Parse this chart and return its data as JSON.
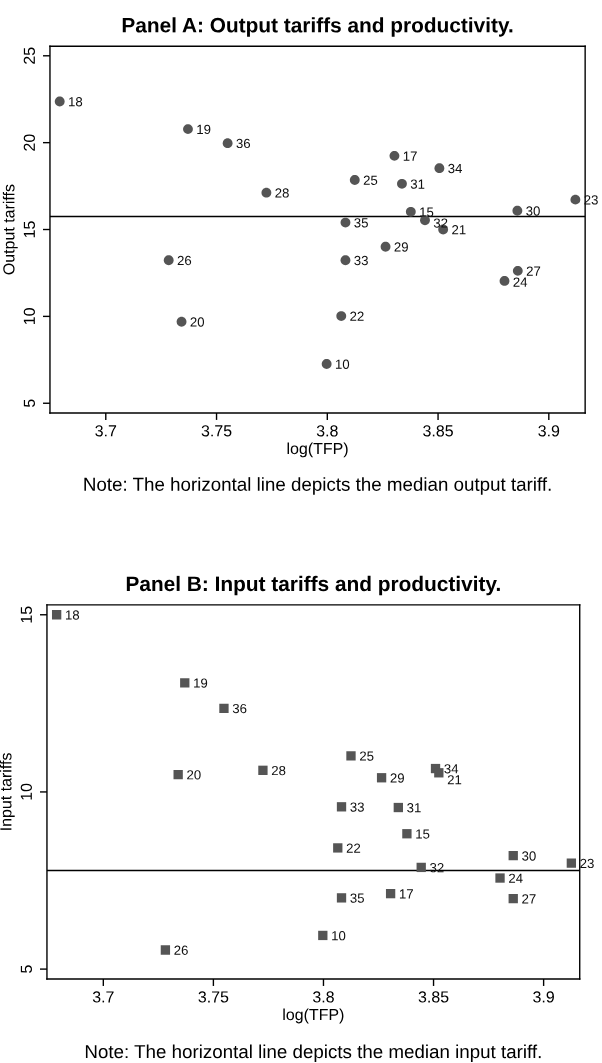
{
  "chart_data": [
    {
      "type": "scatter",
      "title": "Panel A: Output tariffs and productivity.",
      "xlabel": "log(TFP)",
      "ylabel": "Output tariffs",
      "marker": "circle",
      "grid": false,
      "xlim": [
        3.6748,
        3.9164
      ],
      "ylim": [
        4.44,
        25.55
      ],
      "xticks": [
        3.7,
        3.75,
        3.8,
        3.85,
        3.9
      ],
      "yticks": [
        5,
        10,
        15,
        20,
        25
      ],
      "series": [
        {
          "color": "#555555",
          "x": [
            3.6792,
            3.7371,
            3.755,
            3.8303,
            3.8506,
            3.8124,
            3.8337,
            3.7725,
            3.912,
            3.8377,
            3.8858,
            3.8441,
            3.8082,
            3.8523,
            3.8263,
            3.7284,
            3.8082,
            3.886,
            3.88,
            3.8063,
            3.7342,
            3.7997
          ],
          "values": [
            22.37,
            20.78,
            19.97,
            19.24,
            18.53,
            17.85,
            17.63,
            17.12,
            16.72,
            16.02,
            16.08,
            15.53,
            15.4,
            15.0,
            14.01,
            13.23,
            13.23,
            12.62,
            12.04,
            10.02,
            9.69,
            7.26
          ]
        }
      ],
      "ref_lines": [
        {
          "axis": "y",
          "value": 15.75,
          "color": "#000000",
          "line_style": "solid"
        }
      ],
      "annotations": [
        {
          "text": "18",
          "x": 3.6792,
          "y": 22.37
        },
        {
          "text": "19",
          "x": 3.7371,
          "y": 20.78
        },
        {
          "text": "36",
          "x": 3.755,
          "y": 19.97
        },
        {
          "text": "17",
          "x": 3.8303,
          "y": 19.24
        },
        {
          "text": "34",
          "x": 3.8506,
          "y": 18.53
        },
        {
          "text": "25",
          "x": 3.8124,
          "y": 17.85
        },
        {
          "text": "31",
          "x": 3.8337,
          "y": 17.63
        },
        {
          "text": "28",
          "x": 3.7725,
          "y": 17.12
        },
        {
          "text": "23",
          "x": 3.912,
          "y": 16.72
        },
        {
          "text": "15",
          "x": 3.8377,
          "y": 16.02
        },
        {
          "text": "30",
          "x": 3.8858,
          "y": 16.08
        },
        {
          "text": "32",
          "x": 3.8441,
          "y": 15.53
        },
        {
          "text": "35",
          "x": 3.8082,
          "y": 15.4
        },
        {
          "text": "21",
          "x": 3.8523,
          "y": 15.0
        },
        {
          "text": "29",
          "x": 3.8263,
          "y": 14.01
        },
        {
          "text": "26",
          "x": 3.7284,
          "y": 13.23
        },
        {
          "text": "33",
          "x": 3.8082,
          "y": 13.23
        },
        {
          "text": "27",
          "x": 3.886,
          "y": 12.62
        },
        {
          "text": "24",
          "x": 3.88,
          "y": 12.04
        },
        {
          "text": "22",
          "x": 3.8063,
          "y": 10.02
        },
        {
          "text": "20",
          "x": 3.7342,
          "y": 9.69
        },
        {
          "text": "10",
          "x": 3.7997,
          "y": 7.26
        },
        "Note: The horizontal line depicts the median output tariff."
      ]
    },
    {
      "type": "scatter",
      "title": "Panel B: Input tariffs and productivity.",
      "xlabel": "log(TFP)",
      "ylabel": "Input tariffs",
      "marker": "square",
      "grid": false,
      "xlim": [
        3.6744,
        3.9164
      ],
      "ylim": [
        4.72,
        15.28
      ],
      "xticks": [
        3.7,
        3.75,
        3.8,
        3.85,
        3.9
      ],
      "yticks": [
        5,
        10,
        15
      ],
      "series": [
        {
          "color": "#555555",
          "x": [
            3.6788,
            3.737,
            3.7548,
            3.8125,
            3.8509,
            3.7725,
            3.8524,
            3.734,
            3.8264,
            3.8082,
            3.834,
            3.8379,
            3.8065,
            3.8862,
            3.9126,
            3.8444,
            3.8802,
            3.8305,
            3.8082,
            3.8862,
            3.7997,
            3.7282
          ],
          "values": [
            15.0,
            13.08,
            12.36,
            11.02,
            10.66,
            10.61,
            10.54,
            10.49,
            10.4,
            9.58,
            9.56,
            8.82,
            8.42,
            8.2,
            7.99,
            7.87,
            7.57,
            7.13,
            7.01,
            6.99,
            5.95,
            5.54
          ]
        }
      ],
      "ref_lines": [
        {
          "axis": "y",
          "value": 7.78,
          "color": "#000000",
          "line_style": "solid"
        }
      ],
      "annotations": [
        {
          "text": "18",
          "x": 3.6788,
          "y": 15.0
        },
        {
          "text": "19",
          "x": 3.737,
          "y": 13.08
        },
        {
          "text": "36",
          "x": 3.7548,
          "y": 12.36
        },
        {
          "text": "25",
          "x": 3.8125,
          "y": 11.02
        },
        {
          "text": "34",
          "x": 3.8509,
          "y": 10.66
        },
        {
          "text": "28",
          "x": 3.7725,
          "y": 10.61
        },
        {
          "text": "21",
          "x": 3.8524,
          "y": 10.54
        },
        {
          "text": "20",
          "x": 3.734,
          "y": 10.49
        },
        {
          "text": "29",
          "x": 3.8264,
          "y": 10.4
        },
        {
          "text": "33",
          "x": 3.8082,
          "y": 9.58
        },
        {
          "text": "31",
          "x": 3.834,
          "y": 9.56
        },
        {
          "text": "15",
          "x": 3.8379,
          "y": 8.82
        },
        {
          "text": "22",
          "x": 3.8065,
          "y": 8.42
        },
        {
          "text": "30",
          "x": 3.8862,
          "y": 8.2
        },
        {
          "text": "23",
          "x": 3.9126,
          "y": 7.99
        },
        {
          "text": "32",
          "x": 3.8444,
          "y": 7.87
        },
        {
          "text": "24",
          "x": 3.8802,
          "y": 7.57
        },
        {
          "text": "17",
          "x": 3.8305,
          "y": 7.13
        },
        {
          "text": "35",
          "x": 3.8082,
          "y": 7.01
        },
        {
          "text": "27",
          "x": 3.8862,
          "y": 6.99
        },
        {
          "text": "10",
          "x": 3.7997,
          "y": 5.95
        },
        {
          "text": "26",
          "x": 3.7282,
          "y": 5.54
        },
        "Note: The horizontal line depicts the median input tariff."
      ]
    }
  ]
}
